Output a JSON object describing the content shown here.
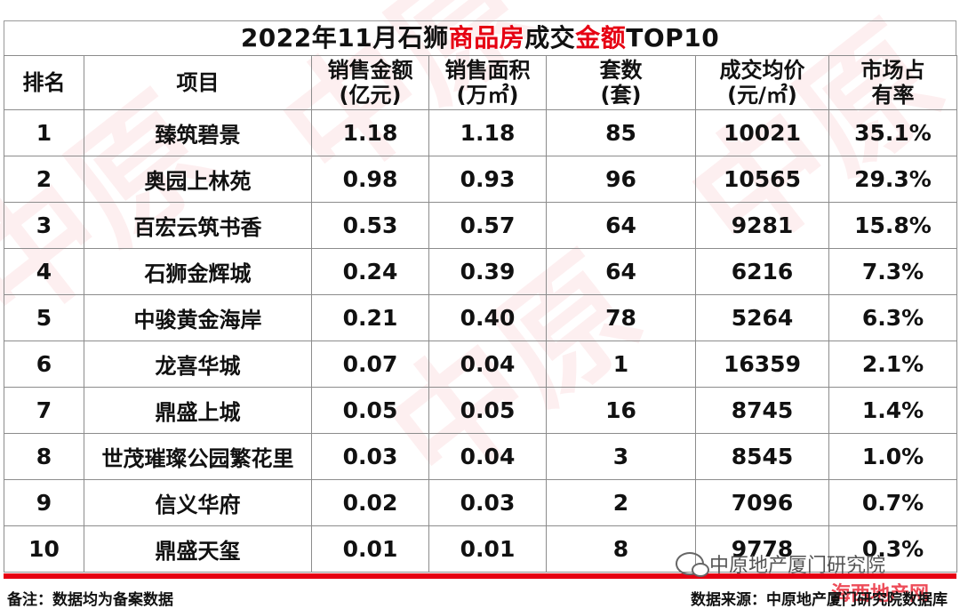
{
  "title": {
    "part1": "2022年11月石狮",
    "part2": "商品房",
    "part3": "成交",
    "part4": "金额",
    "part5": "TOP10"
  },
  "headers": {
    "rank": "排名",
    "project": "项目",
    "sales_amount": {
      "line1": "销售金额",
      "line2": "(亿元)"
    },
    "sales_area": {
      "line1": "销售面积",
      "line2": "(万㎡)"
    },
    "units": {
      "line1": "套数",
      "line2": "(套)"
    },
    "avg_price": {
      "line1": "成交均价",
      "line2": "(元/㎡)"
    },
    "share": {
      "line1": "市场占",
      "line2": "有率"
    }
  },
  "rows": [
    {
      "rank": "1",
      "project": "臻筑碧景",
      "amount": "1.18",
      "area": "1.18",
      "units": "85",
      "price": "10021",
      "share": "35.1%"
    },
    {
      "rank": "2",
      "project": "奥园上林苑",
      "amount": "0.98",
      "area": "0.93",
      "units": "96",
      "price": "10565",
      "share": "29.3%"
    },
    {
      "rank": "3",
      "project": "百宏云筑书香",
      "amount": "0.53",
      "area": "0.57",
      "units": "64",
      "price": "9281",
      "share": "15.8%"
    },
    {
      "rank": "4",
      "project": "石狮金辉城",
      "amount": "0.24",
      "area": "0.39",
      "units": "64",
      "price": "6216",
      "share": "7.3%"
    },
    {
      "rank": "5",
      "project": "中骏黄金海岸",
      "amount": "0.21",
      "area": "0.40",
      "units": "78",
      "price": "5264",
      "share": "6.3%"
    },
    {
      "rank": "6",
      "project": "龙喜华城",
      "amount": "0.07",
      "area": "0.04",
      "units": "1",
      "price": "16359",
      "share": "2.1%"
    },
    {
      "rank": "7",
      "project": "鼎盛上城",
      "amount": "0.05",
      "area": "0.05",
      "units": "16",
      "price": "8745",
      "share": "1.4%"
    },
    {
      "rank": "8",
      "project": "世茂璀璨公园繁花里",
      "amount": "0.03",
      "area": "0.04",
      "units": "3",
      "price": "8545",
      "share": "1.0%"
    },
    {
      "rank": "9",
      "project": "信义华府",
      "amount": "0.02",
      "area": "0.03",
      "units": "2",
      "price": "7096",
      "share": "0.7%"
    },
    {
      "rank": "10",
      "project": "鼎盛天玺",
      "amount": "0.01",
      "area": "0.01",
      "units": "8",
      "price": "9778",
      "share": "0.3%"
    }
  ],
  "footer": {
    "note": "备注：数据均为备案数据",
    "source": "数据来源：中原地产厦门研究院数据库"
  },
  "wechat": {
    "label": "中原地产厦门研究院",
    "icon": "wechat-icon"
  },
  "stamp": "海西地产网",
  "watermark": "中原",
  "colors": {
    "accent": "#e60012",
    "grid": "#8c8c8c"
  }
}
